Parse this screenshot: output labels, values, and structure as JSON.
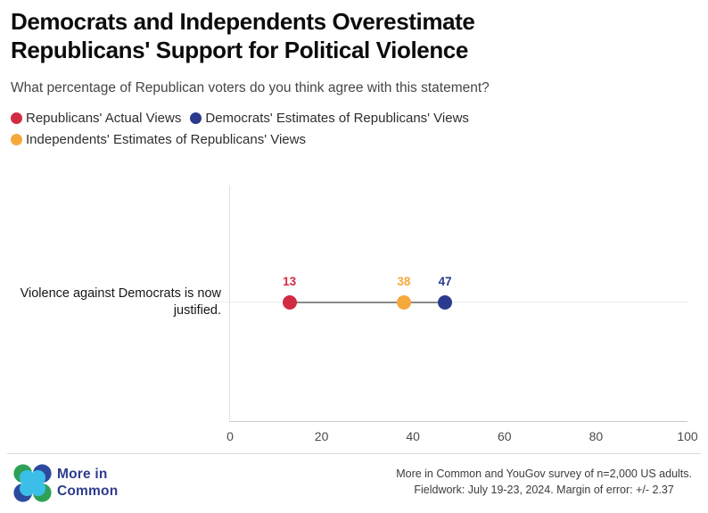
{
  "header": {
    "title": "Democrats and Independents Overestimate Republicans' Support for Political Violence",
    "subtitle": "What percentage of Republican voters do you think agree with this statement?"
  },
  "legend": [
    {
      "label": "Republicans' Actual Views",
      "color": "#d12b44"
    },
    {
      "label": "Democrats' Estimates of Republicans' Views",
      "color": "#2c3a8e"
    },
    {
      "label": "Independents' Estimates of Republicans' Views",
      "color": "#f5a83c"
    }
  ],
  "chart_data": {
    "type": "scatter",
    "subtype": "dumbbell-dot-plot",
    "title": "Democrats and Independents Overestimate Republicans' Support for Political Violence",
    "categories": [
      "Violence against Democrats is now justified."
    ],
    "series": [
      {
        "name": "Republicans' Actual Views",
        "color": "#d12b44",
        "values": [
          13
        ]
      },
      {
        "name": "Independents' Estimates of Republicans' Views",
        "color": "#f5a83c",
        "values": [
          38
        ]
      },
      {
        "name": "Democrats' Estimates of Republicans' Views",
        "color": "#2c3a8e",
        "values": [
          47
        ]
      }
    ],
    "xlim": [
      0,
      100
    ],
    "xticks": [
      0,
      20,
      40,
      60,
      80,
      100
    ],
    "grid": "row-line-and-zero-baseline",
    "legend_position": "top-left",
    "connector_color": "#8a8a8a"
  },
  "row_label": "Violence against Democrats is now justified.",
  "footer": {
    "brand": "More in\nCommon",
    "source_lines": [
      "More in Common and YouGov survey of n=2,000 US adults.",
      "Fieldwork: July 19-23, 2024. Margin of error: +/- 2.37"
    ]
  },
  "icons": {
    "logo": "more-in-common-clover-logo"
  },
  "colors": {
    "red": "#d12b44",
    "blue": "#2c3a8e",
    "orange": "#f5a83c",
    "brand_blue": "#2d3b8e",
    "logo_green": "#2fa156",
    "logo_cyan": "#3bbfe8"
  }
}
